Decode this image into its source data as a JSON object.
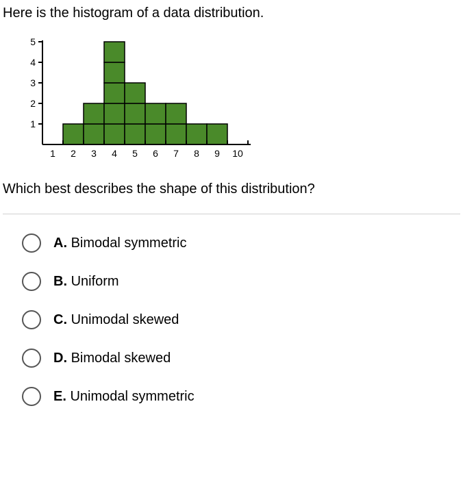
{
  "prompt": "Here is the histogram of a data distribution.",
  "question": "Which best describes the shape of this distribution?",
  "histogram": {
    "type": "histogram",
    "x_labels": [
      "1",
      "2",
      "3",
      "4",
      "5",
      "6",
      "7",
      "8",
      "9",
      "10"
    ],
    "y_ticks": [
      1,
      2,
      3,
      4,
      5
    ],
    "values": [
      0,
      1,
      2,
      5,
      3,
      2,
      2,
      1,
      1,
      0
    ],
    "ylim": [
      0,
      5
    ],
    "bar_fill": "#4a8a2a",
    "bar_stroke": "#000000",
    "axis_color": "#000000",
    "grid_internal": true,
    "cell_size": 30,
    "axis_label_fontsize": 14,
    "background_color": "#ffffff"
  },
  "options": [
    {
      "letter": "A.",
      "text": "Bimodal symmetric"
    },
    {
      "letter": "B.",
      "text": "Uniform"
    },
    {
      "letter": "C.",
      "text": "Unimodal skewed"
    },
    {
      "letter": "D.",
      "text": "Bimodal skewed"
    },
    {
      "letter": "E.",
      "text": "Unimodal symmetric"
    }
  ]
}
